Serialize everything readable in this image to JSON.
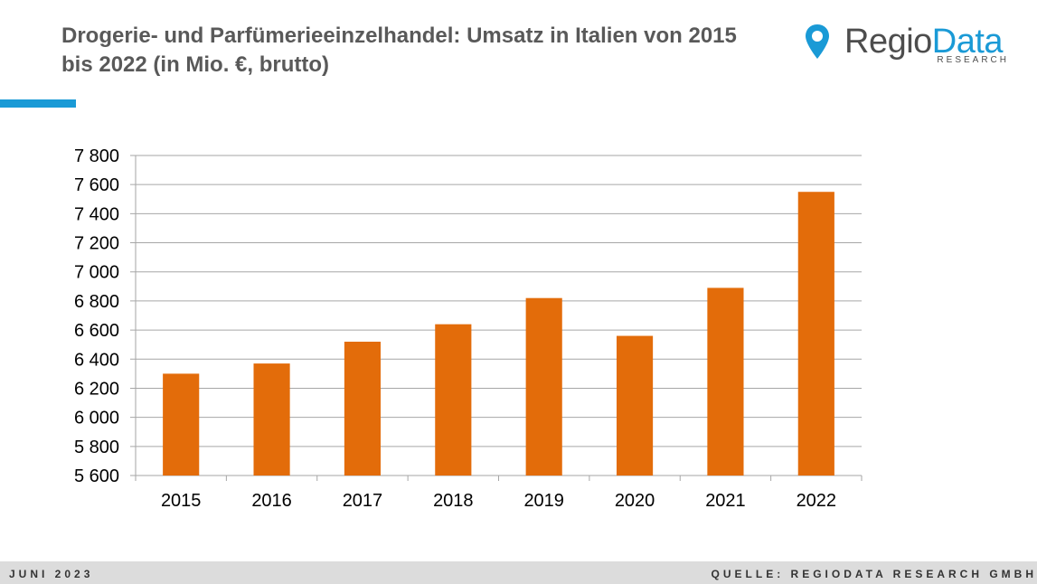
{
  "header": {
    "title": "Drogerie- und Parfümerieeinzelhandel: Umsatz in Italien von 2015 bis 2022 (in Mio. €, brutto)"
  },
  "logo": {
    "word_main": "Regio",
    "word_accent": "Data",
    "subtitle": "RESEARCH",
    "icon": "map-pin-icon"
  },
  "colors": {
    "accent": "#1a9ad6",
    "bar": "#e36c0a",
    "grid": "#a6a6a6",
    "title": "#595959"
  },
  "chart_data": {
    "type": "bar",
    "categories": [
      "2015",
      "2016",
      "2017",
      "2018",
      "2019",
      "2020",
      "2021",
      "2022"
    ],
    "values": [
      6300,
      6370,
      6520,
      6640,
      6820,
      6560,
      6890,
      7550
    ],
    "ylim": [
      5600,
      7800
    ],
    "yticks": [
      5600,
      5800,
      6000,
      6200,
      6400,
      6600,
      6800,
      7000,
      7200,
      7400,
      7600,
      7800
    ],
    "ytick_labels": [
      "5 600",
      "5 800",
      "6 000",
      "6 200",
      "6 400",
      "6 600",
      "6 800",
      "7 000",
      "7 200",
      "7 400",
      "7 600",
      "7 800"
    ],
    "grid": true,
    "legend": "none"
  },
  "footer": {
    "left": "JUNI 2023",
    "right": "QUELLE: REGIODATA RESEARCH GMBH"
  }
}
